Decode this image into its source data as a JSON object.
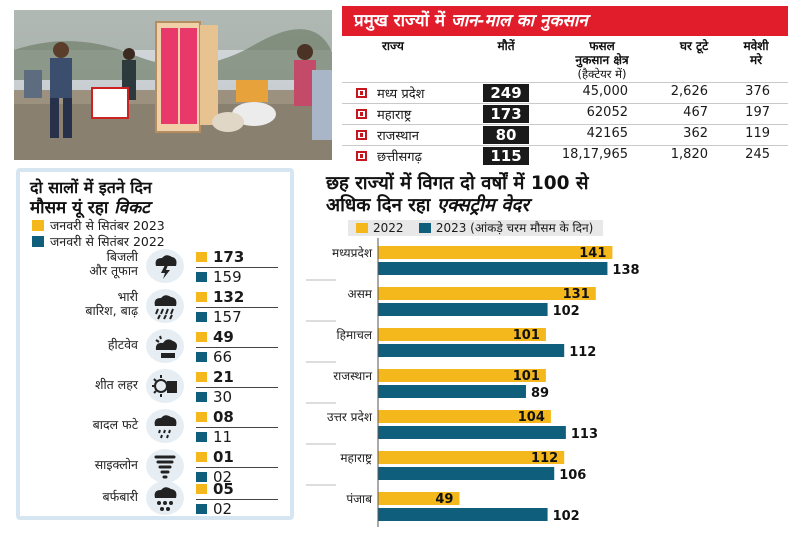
{
  "table": {
    "title_prefix": "प्रमुख राज्यों में",
    "title_highlight": "जान-माल का नुकसान",
    "headers": {
      "state": "राज्य",
      "deaths": "मौतें",
      "crop_line1": "फसल",
      "crop_line2": "नुकसान क्षेत्र",
      "crop_unit": "(हैक्टेयर में)",
      "houses_line1": "घर टूटे",
      "cattle_line1": "मवेशी",
      "cattle_line2": "मरे"
    },
    "rows": [
      {
        "state": "मध्य प्रदेश",
        "deaths": "249",
        "crop": "45,000",
        "houses": "2,626",
        "cattle": "376"
      },
      {
        "state": "महाराष्ट्र",
        "deaths": "173",
        "crop": "62052",
        "houses": "467",
        "cattle": "197"
      },
      {
        "state": "राजस्थान",
        "deaths": "80",
        "crop": "42165",
        "houses": "362",
        "cattle": "119"
      },
      {
        "state": "छत्तीसगढ़",
        "deaths": "115",
        "crop": "18,17,965",
        "houses": "1,820",
        "cattle": "245"
      }
    ]
  },
  "left_panel": {
    "title_line1": "दो सालों में इतने दिन",
    "title_line2_prefix": "मौसम यूं रहा",
    "title_line2_highlight": "विकट",
    "legend_2023": "जनवरी से सितंबर 2023",
    "legend_2022": "जनवरी से सितंबर 2022",
    "items": [
      {
        "label_line1": "बिजली",
        "label_line2": "और तूफान",
        "icon": "lightning-icon",
        "v2023": "173",
        "v2022": "159"
      },
      {
        "label_line1": "भारी",
        "label_line2": "बारिश, बाढ़",
        "icon": "heavy-rain-icon",
        "v2023": "132",
        "v2022": "157"
      },
      {
        "label_line1": "हीटवेव",
        "label_line2": "",
        "icon": "heatwave-icon",
        "v2023": "49",
        "v2022": "66"
      },
      {
        "label_line1": "शीत लहर",
        "label_line2": "",
        "icon": "cold-wave-icon",
        "v2023": "21",
        "v2022": "30"
      },
      {
        "label_line1": "बादल फटे",
        "label_line2": "",
        "icon": "cloudburst-icon",
        "v2023": "08",
        "v2022": "11"
      },
      {
        "label_line1": "साइक्लोन",
        "label_line2": "",
        "icon": "cyclone-icon",
        "v2023": "01",
        "v2022": "02"
      },
      {
        "label_line1": "बर्फबारी",
        "label_line2": "",
        "icon": "snowfall-icon",
        "v2023": "05",
        "v2022": "02"
      }
    ]
  },
  "right_chart": {
    "title_line1": "छह राज्यों में विगत दो वर्षों में 100 से",
    "title_line2_prefix": "अधिक दिन रहा",
    "title_line2_highlight": "एक्सट्रीम वेदर",
    "legend_2022": "2022",
    "legend_2023": "2023 (आंकड़े चरम मौसम के दिन)"
  },
  "colors": {
    "year_2022": "#f5b81c",
    "year_2023": "#0f5e7c",
    "accent_red": "#e11d2b",
    "panel_border": "#d5e6f2"
  },
  "chart_data": {
    "type": "bar",
    "orientation": "horizontal",
    "categories": [
      "मध्यप्रदेश",
      "असम",
      "हिमाचल",
      "राजस्थान",
      "उत्तर प्रदेश",
      "महाराष्ट्र",
      "पंजाब"
    ],
    "series": [
      {
        "name": "2022",
        "values": [
          141,
          131,
          101,
          101,
          104,
          112,
          49
        ]
      },
      {
        "name": "2023",
        "values": [
          138,
          102,
          112,
          89,
          113,
          106,
          102
        ]
      }
    ],
    "xlim": [
      0,
      160
    ],
    "grid": false,
    "legend_position": "top"
  }
}
